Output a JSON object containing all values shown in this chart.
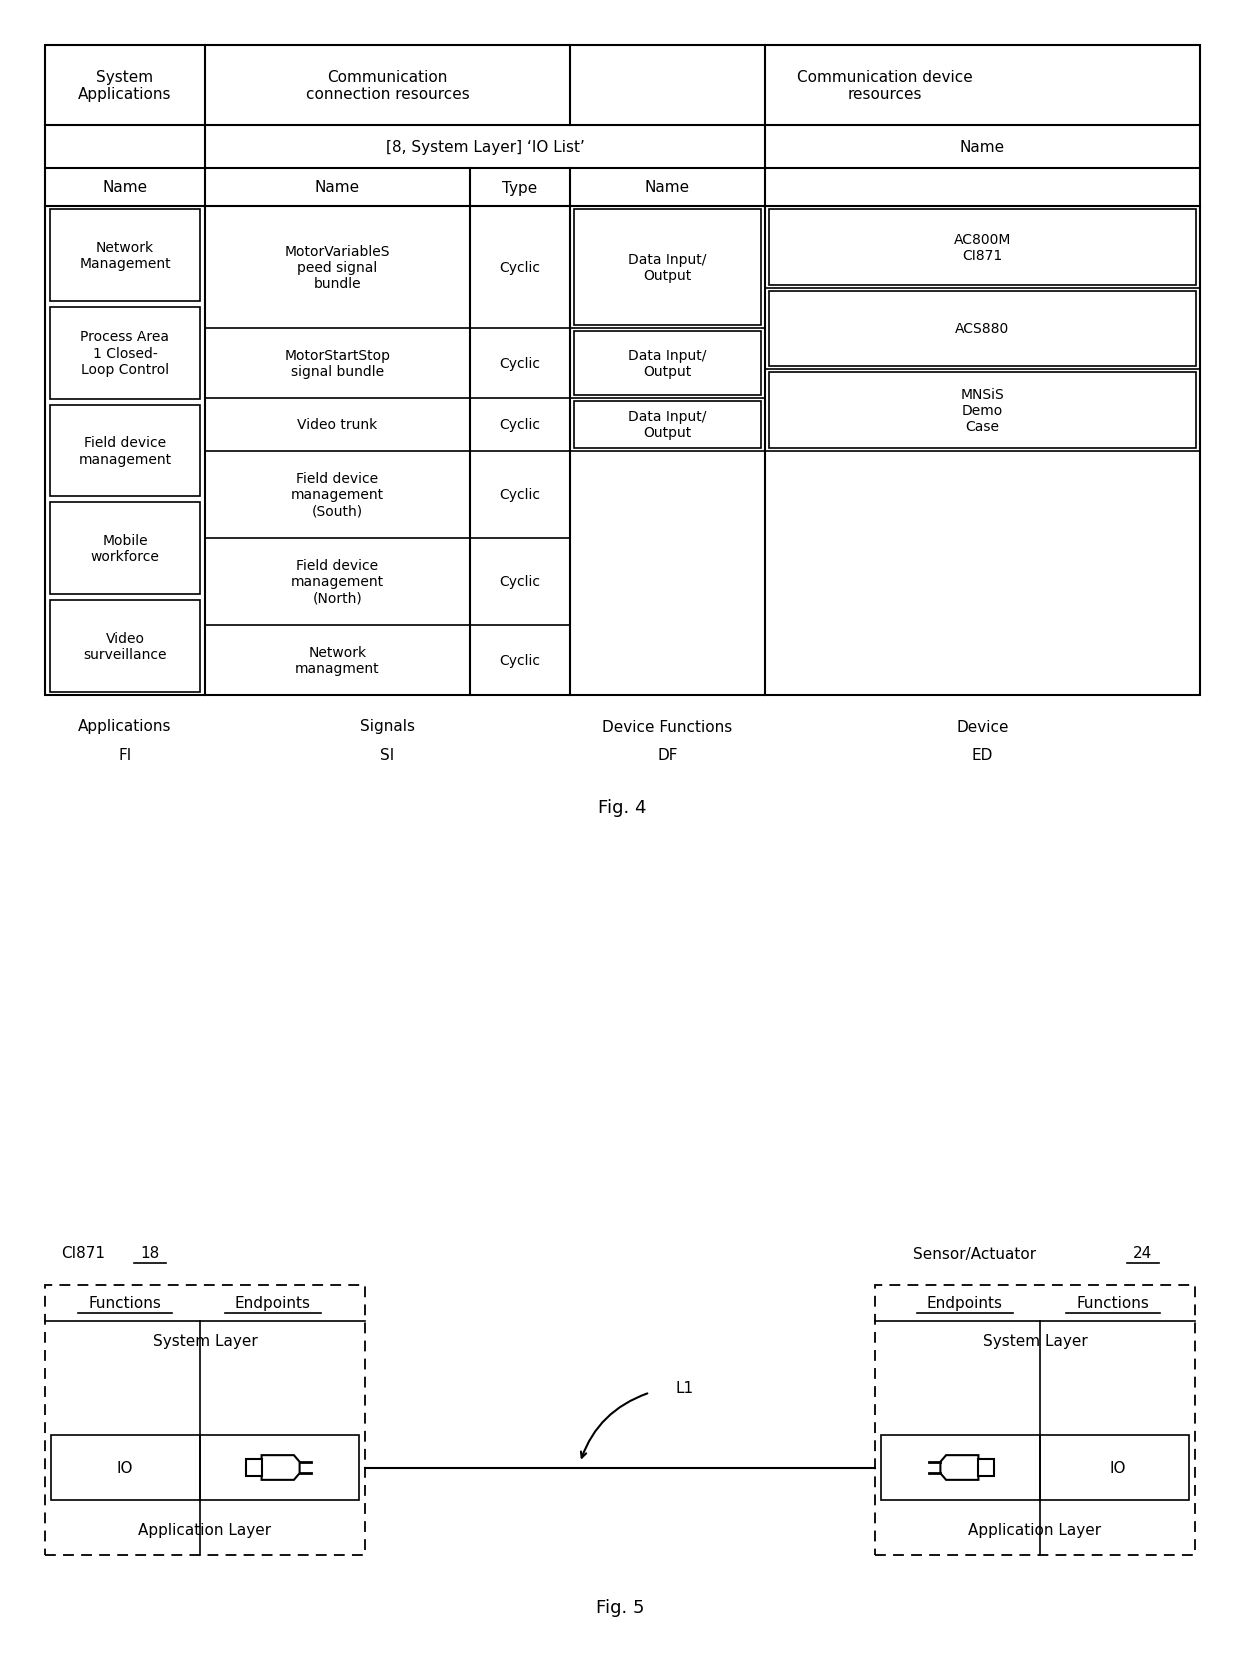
{
  "fig4": {
    "title": "Fig. 4",
    "apps": [
      "Network\nManagement",
      "Process Area\n1 Closed-\nLoop Control",
      "Field device\nmanagement",
      "Mobile\nworkforce",
      "Video\nsurveillance"
    ],
    "signals": [
      [
        "MotorVariableS\npeed signal\nbundle",
        "Cyclic"
      ],
      [
        "MotorStartStop\nsignal bundle",
        "Cyclic"
      ],
      [
        "Video trunk",
        "Cyclic"
      ],
      [
        "Field device\nmanagement\n(South)",
        "Cyclic"
      ],
      [
        "Field device\nmanagement\n(North)",
        "Cyclic"
      ],
      [
        "Network\nmanagment",
        "Cyclic"
      ]
    ],
    "device_funcs": [
      "Data Input/\nOutput",
      "Data Input/\nOutput",
      "Data Input/\nOutput"
    ],
    "devices": [
      "AC800M\nCI871",
      "ACS880",
      "MNSiS\nDemo\nCase"
    ],
    "footer": [
      [
        "Applications",
        "FI"
      ],
      [
        "Signals",
        "SI"
      ],
      [
        "Device Functions",
        "DF"
      ],
      [
        "Device",
        "ED"
      ]
    ]
  },
  "fig5": {
    "title": "Fig. 5",
    "left_label": "CI871",
    "left_number": "18",
    "right_label": "Sensor/Actuator",
    "right_number": "24",
    "left_headers": [
      "Functions",
      "Endpoints"
    ],
    "right_headers": [
      "Endpoints",
      "Functions"
    ],
    "system_layer": "System Layer",
    "application_layer": "Application Layer",
    "left_io": "IO",
    "right_io": "IO",
    "link_label": "L1"
  },
  "bg_color": "#ffffff",
  "line_color": "#000000",
  "text_color": "#000000",
  "font_size": 11,
  "font_size_large": 13
}
